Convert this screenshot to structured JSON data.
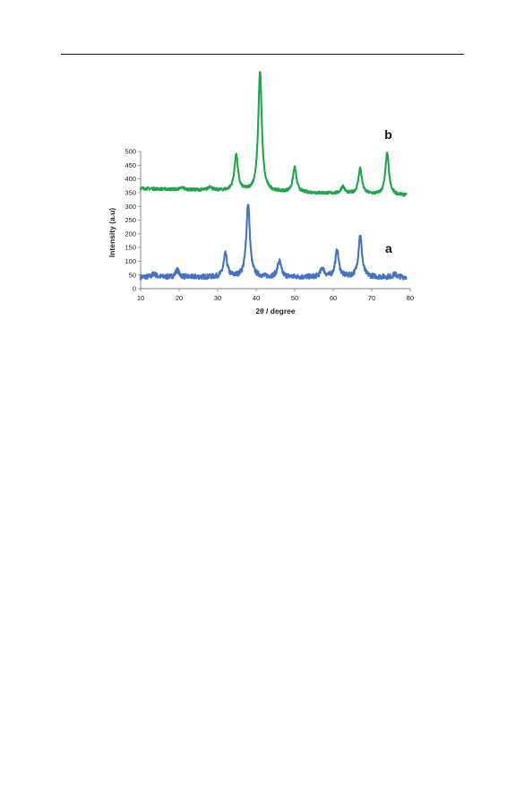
{
  "chart_data": {
    "type": "line",
    "title": "",
    "xlabel": "2θ / degree",
    "ylabel": "Intensity (a.u)",
    "xlim": [
      10,
      80
    ],
    "ylim": [
      0,
      500
    ],
    "x_ticks": [
      10,
      20,
      30,
      40,
      50,
      60,
      70,
      80
    ],
    "y_ticks": [
      0,
      50,
      100,
      150,
      200,
      250,
      300,
      350,
      400,
      450,
      500
    ],
    "grid": false,
    "legend": "none",
    "colors": {
      "a": "#4472C4",
      "b": "#1EA64A"
    },
    "series": [
      {
        "name": "a",
        "baseline": 42,
        "noise": 9,
        "x_range": [
          10,
          79
        ],
        "peaks": [
          {
            "x": 13.5,
            "y": 55
          },
          {
            "x": 19.5,
            "y": 68
          },
          {
            "x": 32.0,
            "y": 125
          },
          {
            "x": 37.9,
            "y": 310
          },
          {
            "x": 46.0,
            "y": 100
          },
          {
            "x": 57.2,
            "y": 75
          },
          {
            "x": 61.0,
            "y": 138
          },
          {
            "x": 67.0,
            "y": 195
          },
          {
            "x": 76.0,
            "y": 52
          }
        ]
      },
      {
        "name": "b",
        "baseline_start": 365,
        "baseline_end": 340,
        "noise": 5,
        "x_range": [
          10,
          79
        ],
        "peaks": [
          {
            "x": 20.8,
            "y": 368
          },
          {
            "x": 28.0,
            "y": 372
          },
          {
            "x": 34.8,
            "y": 488
          },
          {
            "x": 41.0,
            "y": 790
          },
          {
            "x": 50.0,
            "y": 440
          },
          {
            "x": 62.5,
            "y": 372
          },
          {
            "x": 67.0,
            "y": 438
          },
          {
            "x": 74.0,
            "y": 493
          }
        ]
      }
    ]
  }
}
